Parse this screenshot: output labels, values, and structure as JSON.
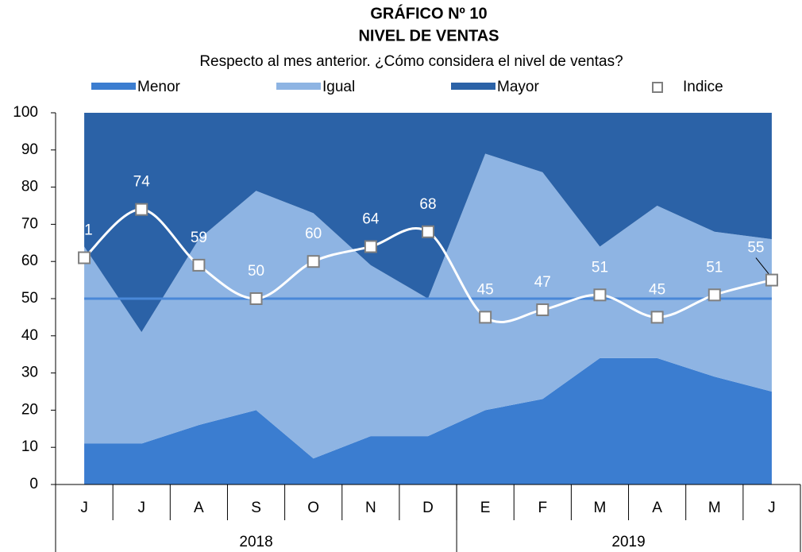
{
  "chart_data": {
    "type": "stacked_area",
    "title": "GRÁFICO Nº 10",
    "subtitle": "NIVEL DE VENTAS",
    "question": "Respecto al mes anterior. ¿Cómo considera el nivel de ventas?",
    "categories": [
      "J",
      "J",
      "A",
      "S",
      "O",
      "N",
      "D",
      "E",
      "F",
      "M",
      "A",
      "M",
      "J"
    ],
    "groups": [
      {
        "label": "2018",
        "count": 7
      },
      {
        "label": "2019",
        "count": 6
      }
    ],
    "series": [
      {
        "name": "Menor",
        "color": "#3b7dd0",
        "values": [
          11,
          11,
          16,
          20,
          7,
          13,
          13,
          20,
          23,
          34,
          34,
          29,
          25
        ]
      },
      {
        "name": "Igual",
        "color": "#8eb4e3",
        "values": [
          53,
          30,
          50,
          59,
          66,
          46,
          37,
          69,
          61,
          30,
          41,
          39,
          41
        ]
      },
      {
        "name": "Mayor",
        "color": "#2b62a7",
        "values": [
          36,
          59,
          34,
          21,
          27,
          41,
          50,
          11,
          16,
          36,
          25,
          32,
          34
        ]
      }
    ],
    "index": {
      "name": "Indice",
      "color": "#ffffff",
      "values": [
        61,
        74,
        59,
        50,
        60,
        64,
        68,
        45,
        47,
        51,
        45,
        51,
        55
      ]
    },
    "reference_line": 50,
    "reference_color": "#4a88d8",
    "ylim": [
      0,
      100
    ],
    "yticks": [
      0,
      10,
      20,
      30,
      40,
      50,
      60,
      70,
      80,
      90,
      100
    ]
  }
}
